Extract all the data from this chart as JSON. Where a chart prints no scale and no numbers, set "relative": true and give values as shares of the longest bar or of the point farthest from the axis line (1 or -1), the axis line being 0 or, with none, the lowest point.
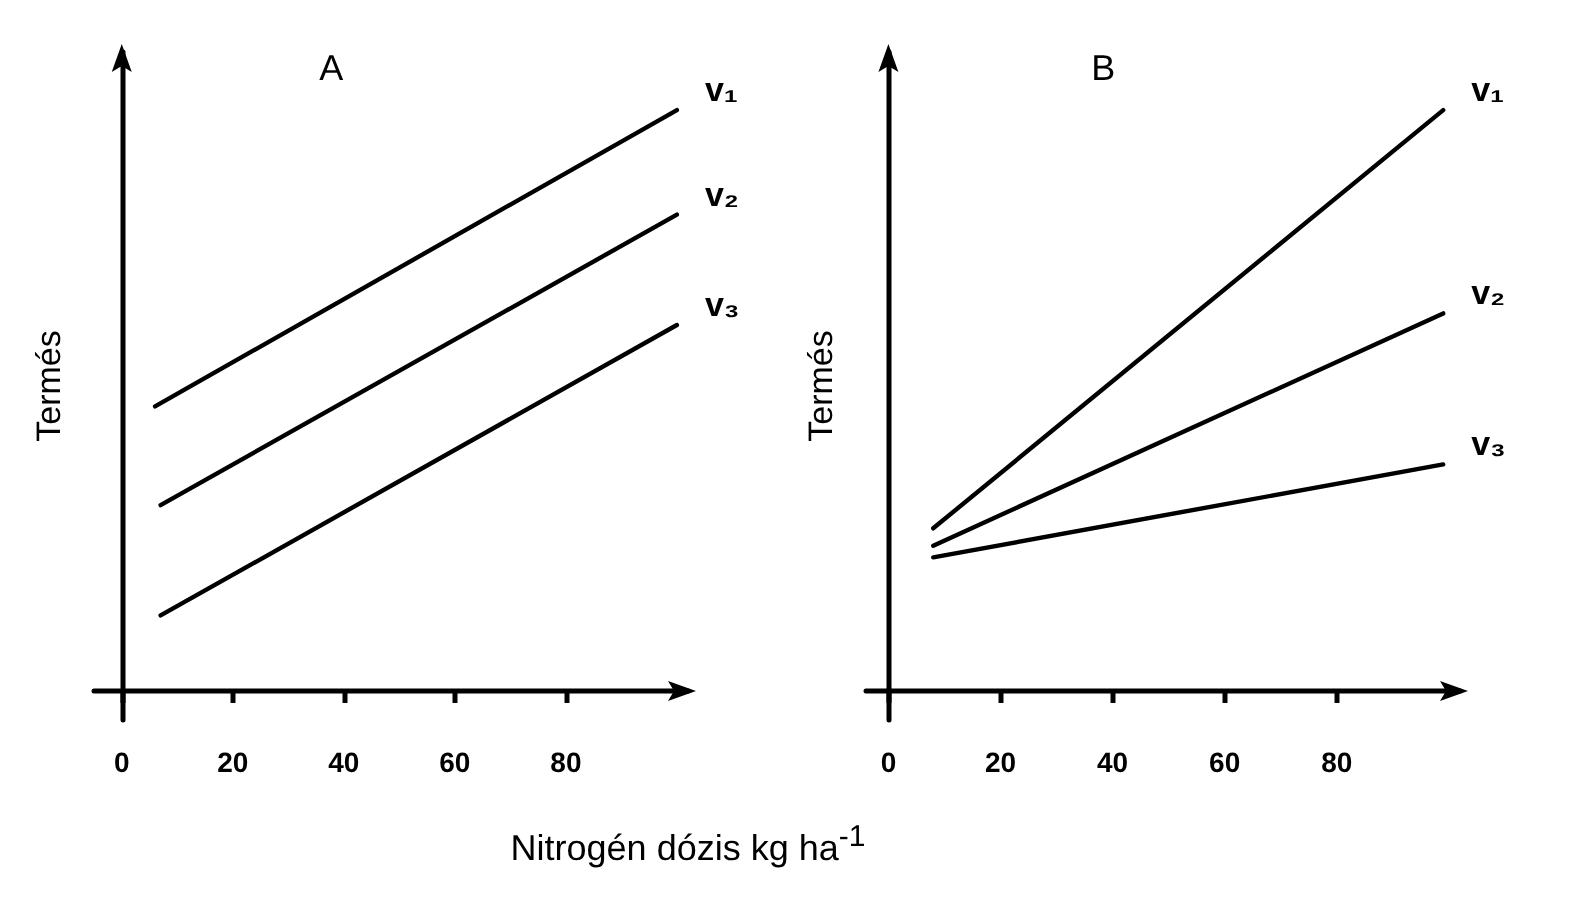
{
  "chart_data": [
    {
      "type": "line",
      "title": "A",
      "xlabel": "Nitrogén dózis kg ha$^{-1}$",
      "ylabel": "Termés",
      "relative": true,
      "xlim": [
        -5,
        102
      ],
      "xticks": [
        0,
        20,
        40,
        60,
        80
      ],
      "legend": false,
      "marker": "none",
      "line_style": "solid",
      "series": [
        {
          "name": "v₁",
          "color": "#000000",
          "x": [
            6,
            100
          ],
          "values": [
            0.49,
            1.0
          ]
        },
        {
          "name": "v₂",
          "color": "#000000",
          "x": [
            7,
            100
          ],
          "values": [
            0.32,
            0.82
          ]
        },
        {
          "name": "v₃",
          "color": "#000000",
          "x": [
            7,
            100
          ],
          "values": [
            0.13,
            0.63
          ]
        }
      ]
    },
    {
      "type": "line",
      "title": "B",
      "ylabel": "Termés",
      "relative": true,
      "xlim": [
        -4,
        102
      ],
      "xticks": [
        0,
        20,
        40,
        60,
        80
      ],
      "legend": false,
      "marker": "none",
      "line_style": "solid",
      "series": [
        {
          "name": "v₁",
          "color": "#000000",
          "x": [
            8,
            99
          ],
          "values": [
            0.28,
            1.0
          ]
        },
        {
          "name": "v₂",
          "color": "#000000",
          "x": [
            8,
            99
          ],
          "values": [
            0.25,
            0.65
          ]
        },
        {
          "name": "v₃",
          "color": "#000000",
          "x": [
            8,
            99
          ],
          "values": [
            0.23,
            0.39
          ]
        }
      ]
    }
  ]
}
